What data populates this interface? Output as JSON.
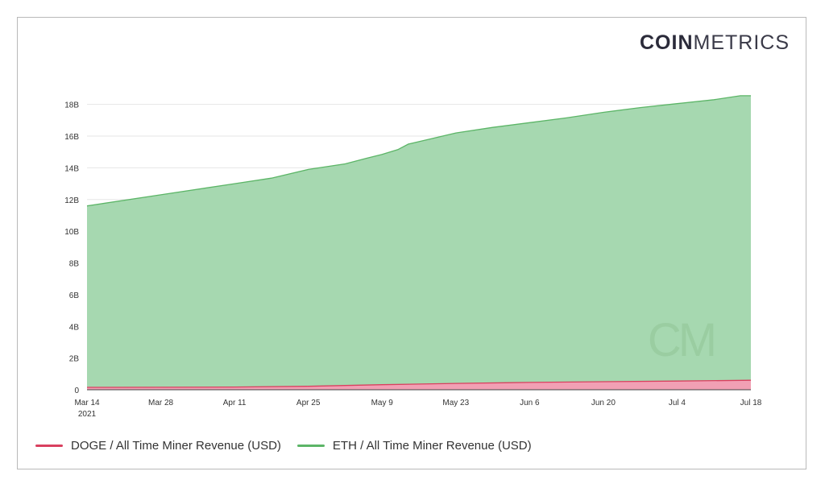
{
  "brand": {
    "logo_bold": "COIN",
    "logo_light": "METRICS",
    "watermark": "CM"
  },
  "colors": {
    "eth_fill": "#a6d8b0",
    "eth_line": "#5cb567",
    "doge_fill": "#f1a0b4",
    "doge_line": "#d9405f",
    "grid": "#e6e6e6"
  },
  "chart_data": {
    "type": "area",
    "title": "",
    "xlabel": "",
    "ylabel": "",
    "ylim": [
      0,
      19000000000
    ],
    "y_ticks": [
      {
        "value": 0,
        "label": "0"
      },
      {
        "value": 2000000000,
        "label": "2B"
      },
      {
        "value": 4000000000,
        "label": "4B"
      },
      {
        "value": 6000000000,
        "label": "6B"
      },
      {
        "value": 8000000000,
        "label": "8B"
      },
      {
        "value": 10000000000,
        "label": "10B"
      },
      {
        "value": 12000000000,
        "label": "12B"
      },
      {
        "value": 14000000000,
        "label": "14B"
      },
      {
        "value": 16000000000,
        "label": "16B"
      },
      {
        "value": 18000000000,
        "label": "18B"
      }
    ],
    "x_ticks": [
      {
        "date": "2021-03-14",
        "label": "Mar 14",
        "sublabel": "2021"
      },
      {
        "date": "2021-03-28",
        "label": "Mar 28"
      },
      {
        "date": "2021-04-11",
        "label": "Apr 11"
      },
      {
        "date": "2021-04-25",
        "label": "Apr 25"
      },
      {
        "date": "2021-05-09",
        "label": "May 9"
      },
      {
        "date": "2021-05-23",
        "label": "May 23"
      },
      {
        "date": "2021-06-06",
        "label": "Jun 6"
      },
      {
        "date": "2021-06-20",
        "label": "Jun 20"
      },
      {
        "date": "2021-07-04",
        "label": "Jul 4"
      },
      {
        "date": "2021-07-18",
        "label": "Jul 18"
      }
    ],
    "grid": true,
    "legend_position": "bottom-left",
    "series": [
      {
        "name": "ETH / All Time Miner Revenue (USD)",
        "color": "#5cb567",
        "points": [
          [
            "2021-03-14",
            11600000000
          ],
          [
            "2021-03-28",
            12300000000
          ],
          [
            "2021-04-11",
            13000000000
          ],
          [
            "2021-04-18",
            13350000000
          ],
          [
            "2021-04-25",
            13900000000
          ],
          [
            "2021-05-02",
            14250000000
          ],
          [
            "2021-05-06",
            14600000000
          ],
          [
            "2021-05-09",
            14850000000
          ],
          [
            "2021-05-12",
            15150000000
          ],
          [
            "2021-05-14",
            15500000000
          ],
          [
            "2021-05-16",
            15650000000
          ],
          [
            "2021-05-23",
            16200000000
          ],
          [
            "2021-05-30",
            16550000000
          ],
          [
            "2021-06-06",
            16850000000
          ],
          [
            "2021-06-13",
            17150000000
          ],
          [
            "2021-06-20",
            17500000000
          ],
          [
            "2021-06-27",
            17800000000
          ],
          [
            "2021-07-04",
            18050000000
          ],
          [
            "2021-07-11",
            18300000000
          ],
          [
            "2021-07-16",
            18550000000
          ],
          [
            "2021-07-18",
            18550000000
          ]
        ]
      },
      {
        "name": "DOGE / All Time Miner Revenue (USD)",
        "color": "#d9405f",
        "points": [
          [
            "2021-03-14",
            150000000
          ],
          [
            "2021-03-28",
            160000000
          ],
          [
            "2021-04-11",
            175000000
          ],
          [
            "2021-04-25",
            220000000
          ],
          [
            "2021-05-09",
            320000000
          ],
          [
            "2021-05-23",
            400000000
          ],
          [
            "2021-06-06",
            460000000
          ],
          [
            "2021-06-20",
            510000000
          ],
          [
            "2021-07-04",
            550000000
          ],
          [
            "2021-07-18",
            600000000
          ]
        ]
      }
    ]
  }
}
